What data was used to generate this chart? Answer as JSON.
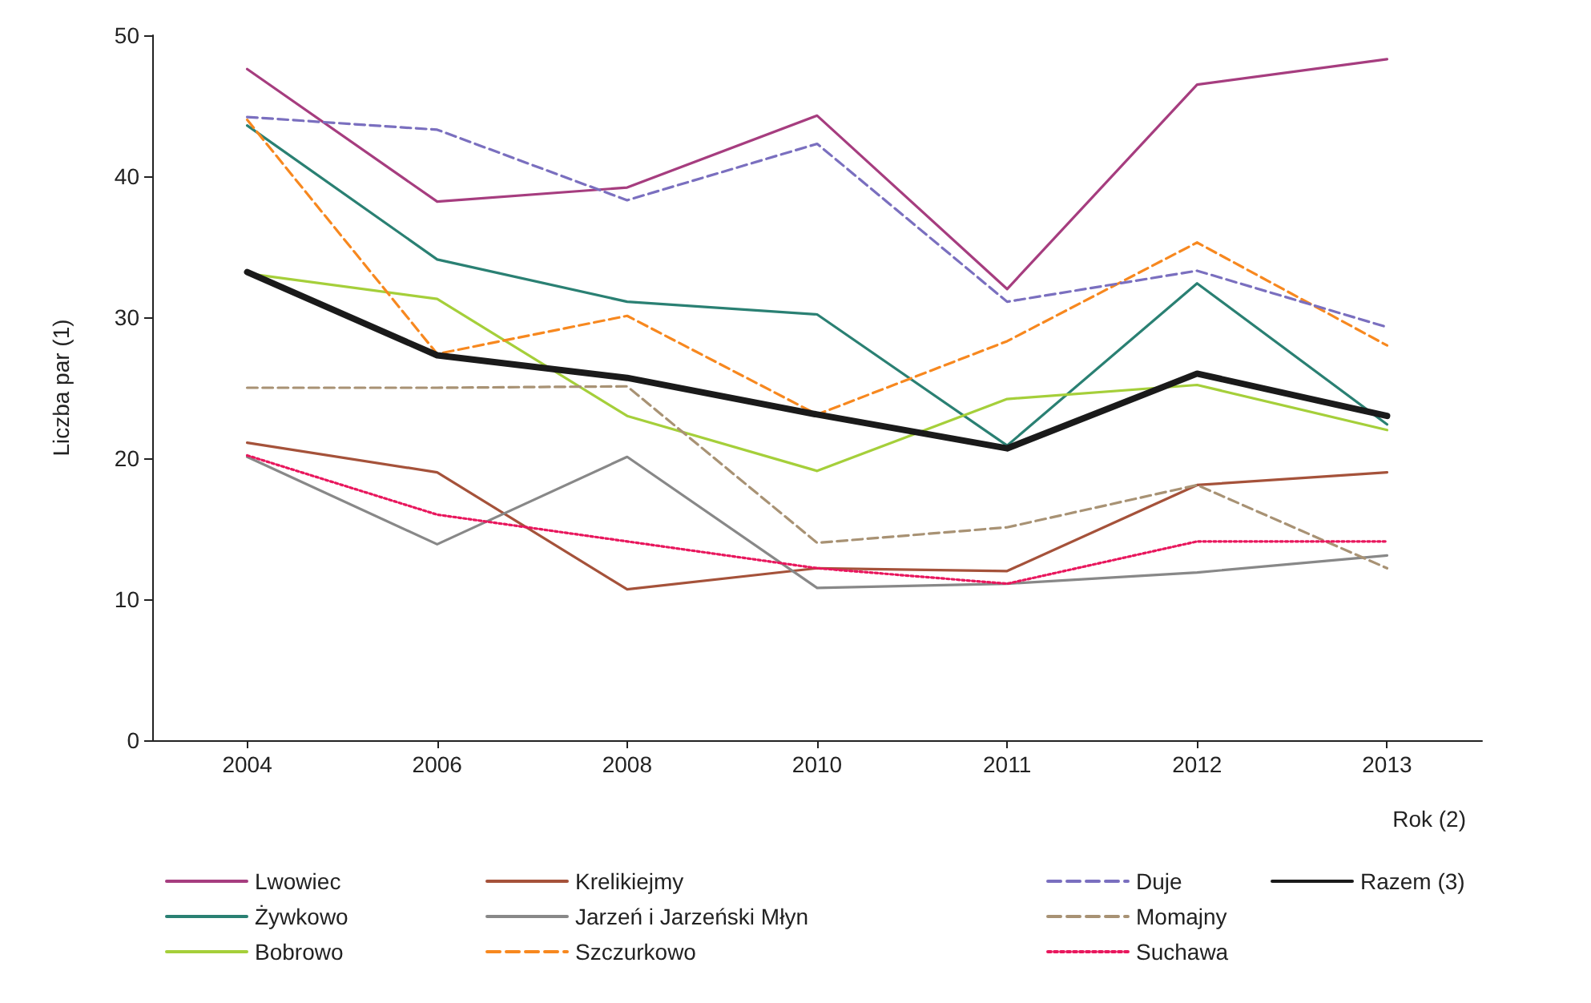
{
  "chart_data": {
    "type": "line",
    "xlabel": "Rok (2)",
    "ylabel": "Liczba par (1)",
    "categories": [
      "2004",
      "2006",
      "2008",
      "2010",
      "2011",
      "2012",
      "2013"
    ],
    "ylim": [
      0,
      50
    ],
    "yticks": [
      0,
      10,
      20,
      30,
      40,
      50
    ],
    "grid": false,
    "legend": "bottom",
    "marker": "none",
    "series": [
      {
        "name": "Lwowiec",
        "color": "#a63d7f",
        "line_style": "solid",
        "values": [
          47.6,
          38.2,
          39.2,
          44.3,
          32.0,
          46.5,
          48.3
        ]
      },
      {
        "name": "Żywkowo",
        "color": "#2a8073",
        "line_style": "solid",
        "values": [
          43.6,
          34.1,
          31.1,
          30.2,
          20.9,
          32.4,
          22.4
        ]
      },
      {
        "name": "Bobrowo",
        "color": "#a5cf3a",
        "line_style": "solid",
        "values": [
          33.1,
          31.3,
          23.0,
          19.1,
          24.2,
          25.2,
          22.0
        ]
      },
      {
        "name": "Krelikiejmy",
        "color": "#a5523a",
        "line_style": "solid",
        "values": [
          21.1,
          19.0,
          10.7,
          12.2,
          12.0,
          18.1,
          19.0
        ]
      },
      {
        "name": "Jarzeń i Jarzeński Młyn",
        "color": "#888888",
        "line_style": "solid",
        "values": [
          20.1,
          13.9,
          20.1,
          10.8,
          11.1,
          11.9,
          13.1
        ]
      },
      {
        "name": "Szczurkowo",
        "color": "#f7881f",
        "line_style": "dashed",
        "values": [
          44.0,
          27.4,
          30.1,
          23.1,
          28.3,
          35.3,
          28.0
        ]
      },
      {
        "name": "Duje",
        "color": "#7a6fbf",
        "line_style": "dashed",
        "values": [
          44.2,
          43.3,
          38.3,
          42.3,
          31.1,
          33.3,
          29.3
        ]
      },
      {
        "name": "Momajny",
        "color": "#a89274",
        "line_style": "dashed",
        "values": [
          25.0,
          25.0,
          25.1,
          14.0,
          15.1,
          18.1,
          12.2
        ]
      },
      {
        "name": "Suchawa",
        "color": "#e8175d",
        "line_style": "dotted",
        "values": [
          20.2,
          16.0,
          14.1,
          12.2,
          11.1,
          14.1,
          14.1
        ]
      },
      {
        "name": "Razem (3)",
        "color": "#1a1a1a",
        "line_style": "solid",
        "values": [
          33.2,
          27.3,
          25.7,
          23.1,
          20.7,
          26.0,
          23.0
        ]
      }
    ]
  }
}
